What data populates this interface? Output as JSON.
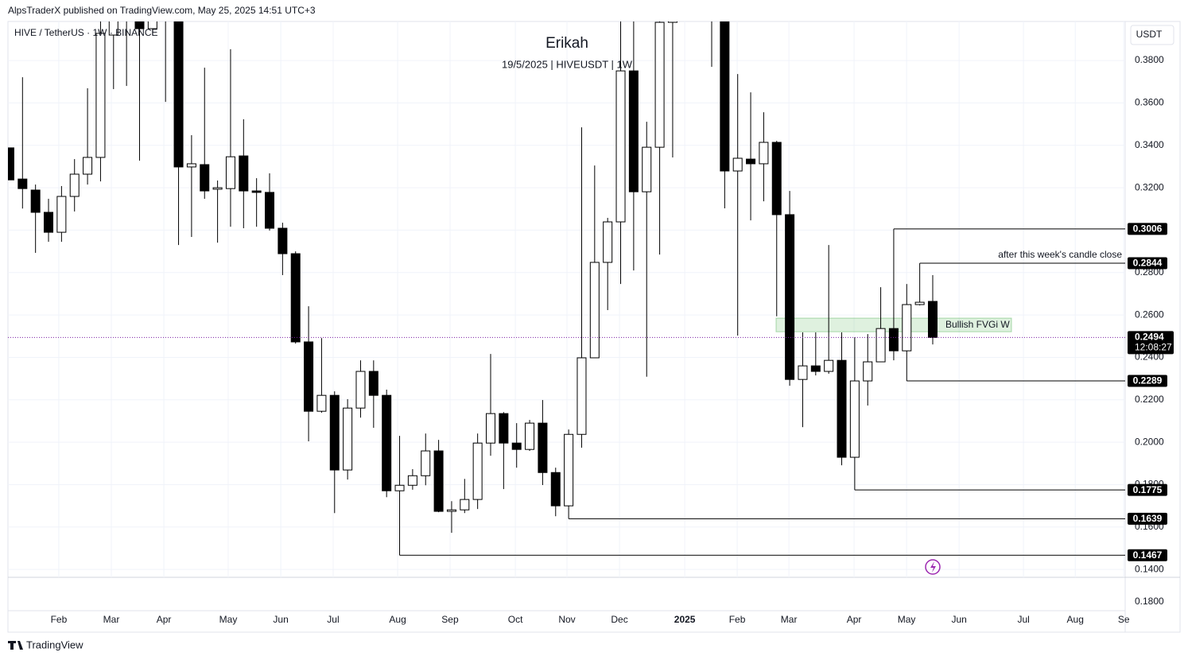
{
  "header": {
    "publisher": "AlpsTraderX published on TradingView.com, May 25, 2025 14:51 UTC+3",
    "symbol": "HIVE / TetherUS · 1W · BINANCE",
    "currency": "USDT",
    "footer": "TradingView"
  },
  "chart_data": {
    "type": "candlestick",
    "title": "Erikah",
    "subtitle": "19/5/2025 | HIVEUSDT | 1W",
    "open": [
      0.3388,
      0.3241,
      0.3189,
      0.3084,
      0.299,
      0.3159,
      0.3264,
      0.3343,
      0.392,
      0.4,
      0.405,
      0.395,
      0.4,
      0.405,
      0.3298,
      0.3309,
      0.3193,
      0.3196,
      0.335,
      0.3185,
      0.3178,
      0.3009,
      0.2889,
      0.2473,
      0.2146,
      0.2221,
      0.1869,
      0.2161,
      0.2334,
      0.2221,
      0.1771,
      0.1797,
      0.1842,
      0.1959,
      0.1674,
      0.1681,
      0.173,
      0.1996,
      0.2135,
      0.1996,
      0.1966,
      0.209,
      0.1857,
      0.17,
      0.2037,
      0.2398,
      0.2848,
      0.3039,
      0.3751,
      0.3181,
      0.3391,
      0.398,
      0.41,
      0.42,
      0.41,
      0.4,
      0.3279,
      0.3335,
      0.3313,
      0.3414,
      0.3073,
      0.2296,
      0.236,
      0.2334,
      0.2386,
      0.1929,
      0.2289,
      0.2379,
      0.2536,
      0.2431,
      0.2649,
      0.2664
    ],
    "high": [
      0.3388,
      0.3721,
      0.3215,
      0.3148,
      0.3208,
      0.3335,
      0.3669,
      0.4,
      0.41,
      0.415,
      0.415,
      0.41,
      0.415,
      0.41,
      0.3448,
      0.3766,
      0.3234,
      0.3853,
      0.3523,
      0.3245,
      0.3268,
      0.3035,
      0.29,
      0.2641,
      0.2491,
      0.224,
      0.2203,
      0.2386,
      0.2386,
      0.2248,
      0.203,
      0.1873,
      0.2041,
      0.2011,
      0.1722,
      0.1827,
      0.2041,
      0.2416,
      0.2142,
      0.209,
      0.2105,
      0.2199,
      0.188,
      0.206,
      0.3485,
      0.3305,
      0.3058,
      0.4,
      0.4,
      0.3511,
      0.4,
      0.42,
      0.43,
      0.43,
      0.42,
      0.41,
      0.3736,
      0.365,
      0.3556,
      0.3421,
      0.3185,
      0.2518,
      0.2518,
      0.293,
      0.2518,
      0.2495,
      0.251,
      0.2731,
      0.3006,
      0.2746,
      0.2844,
      0.2788
    ],
    "low": [
      0.3237,
      0.3102,
      0.2893,
      0.2945,
      0.2945,
      0.3088,
      0.3215,
      0.323,
      0.3665,
      0.368,
      0.3328,
      0.392,
      0.3605,
      0.293,
      0.2968,
      0.3148,
      0.2941,
      0.3016,
      0.3009,
      0.3016,
      0.2998,
      0.2788,
      0.2465,
      0.2004,
      0.2139,
      0.1666,
      0.1824,
      0.2116,
      0.2068,
      0.1741,
      0.1467,
      0.1776,
      0.1797,
      0.167,
      0.1573,
      0.1666,
      0.1685,
      0.1936,
      0.1779,
      0.188,
      0.1959,
      0.1798,
      0.1651,
      0.1639,
      0.1974,
      0.2398,
      0.2623,
      0.2746,
      0.281,
      0.2309,
      0.2885,
      0.3343,
      0.4,
      0.4,
      0.377,
      0.3103,
      0.2503,
      0.3046,
      0.3136,
      0.2594,
      0.2266,
      0.2071,
      0.2315,
      0.2323,
      0.1891,
      0.1775,
      0.2173,
      0.2379,
      0.2386,
      0.2289,
      0.2645,
      0.2461
    ],
    "close": [
      0.3237,
      0.3196,
      0.3084,
      0.299,
      0.3159,
      0.3264,
      0.3343,
      0.3928,
      0.4,
      0.405,
      0.395,
      0.4,
      0.405,
      0.3298,
      0.3313,
      0.3185,
      0.32,
      0.3346,
      0.3185,
      0.3178,
      0.3009,
      0.2889,
      0.2473,
      0.2146,
      0.2221,
      0.1869,
      0.2161,
      0.2334,
      0.2221,
      0.1771,
      0.1797,
      0.1842,
      0.1959,
      0.1674,
      0.1681,
      0.173,
      0.1996,
      0.2135,
      0.1996,
      0.1966,
      0.209,
      0.1857,
      0.17,
      0.2037,
      0.2398,
      0.2848,
      0.3039,
      0.3751,
      0.3181,
      0.3391,
      0.398,
      0.41,
      0.42,
      0.41,
      0.4,
      0.3279,
      0.3339,
      0.3313,
      0.3414,
      0.3073,
      0.2296,
      0.236,
      0.2334,
      0.2386,
      0.1929,
      0.2289,
      0.2379,
      0.2536,
      0.2431,
      0.2649,
      0.266,
      0.2494
    ],
    "up_color": "#ffffff",
    "down_color": "#000000",
    "ylim": [
      0.1363,
      0.3984
    ],
    "yticks": [
      {
        "value": 0.38,
        "label": "0.3800"
      },
      {
        "value": 0.36,
        "label": "0.3600"
      },
      {
        "value": 0.34,
        "label": "0.3400"
      },
      {
        "value": 0.32,
        "label": "0.3200"
      },
      {
        "value": 0.3,
        "label": "0.3000"
      },
      {
        "value": 0.28,
        "label": "0.2800"
      },
      {
        "value": 0.26,
        "label": "0.2600"
      },
      {
        "value": 0.24,
        "label": "0.2400"
      },
      {
        "value": 0.22,
        "label": "0.2200"
      },
      {
        "value": 0.2,
        "label": "0.2000"
      },
      {
        "value": 0.18,
        "label": "0.1800"
      },
      {
        "value": 0.16,
        "label": "0.1600"
      },
      {
        "value": 0.14,
        "label": "0.1400"
      }
    ],
    "xlim": [
      -0.12,
      85.8
    ],
    "xticks": [
      {
        "value": 3.79,
        "label": "Feb"
      },
      {
        "value": 7.83,
        "label": "Mar"
      },
      {
        "value": 11.87,
        "label": "Apr"
      },
      {
        "value": 16.82,
        "label": "May"
      },
      {
        "value": 20.86,
        "label": "Jun"
      },
      {
        "value": 24.89,
        "label": "Jul"
      },
      {
        "value": 29.85,
        "label": "Aug"
      },
      {
        "value": 33.88,
        "label": "Sep"
      },
      {
        "value": 38.9,
        "label": "Oct"
      },
      {
        "value": 42.87,
        "label": "Nov"
      },
      {
        "value": 46.91,
        "label": "Dec"
      },
      {
        "value": 51.93,
        "label": "2025"
      },
      {
        "value": 55.96,
        "label": "Feb"
      },
      {
        "value": 59.94,
        "label": "Mar"
      },
      {
        "value": 64.95,
        "label": "Apr"
      },
      {
        "value": 68.99,
        "label": "May"
      },
      {
        "value": 73.03,
        "label": "Jun"
      },
      {
        "value": 77.98,
        "label": "Jul"
      },
      {
        "value": 81.96,
        "label": "Aug"
      },
      {
        "value": 85.69,
        "label": "Se"
      }
    ],
    "grid": true,
    "levels": [
      0.3006,
      0.2844,
      0.2289,
      0.1775,
      0.1639,
      0.1467
    ],
    "last_price": 0.2494,
    "countdown": "12:08:27",
    "annotation": "after this week's candle close",
    "zone": {
      "label": "Bullish FVGi W",
      "top": 0.2585,
      "bottom": 0.2521
    },
    "lower_pane_label": "0.1800"
  }
}
